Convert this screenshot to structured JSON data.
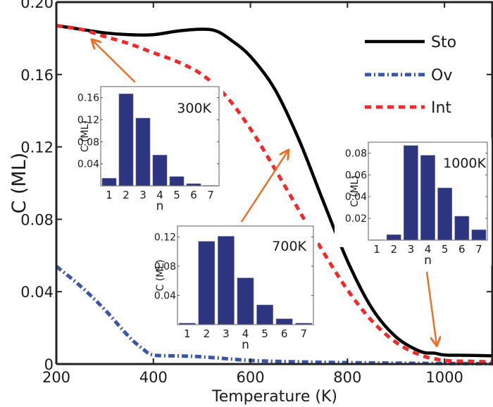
{
  "chart_data": {
    "type": "line",
    "title": "",
    "xlabel": "Temperature (K)",
    "ylabel": "C (ML)",
    "xlim": [
      200,
      1100
    ],
    "ylim": [
      0,
      0.2
    ],
    "xticks": [
      200,
      400,
      600,
      800,
      1000
    ],
    "xtick_labels": [
      "200",
      "400",
      "600",
      "800",
      "1000"
    ],
    "yticks": [
      0,
      0.04,
      0.08,
      0.12,
      0.16,
      0.2
    ],
    "ytick_labels": [
      "0",
      "0.04",
      "0.08",
      "0.12",
      "0.16",
      "0.20"
    ],
    "grid": false,
    "legend_position": "top-right",
    "series": [
      {
        "name": "Sto",
        "style": "solid",
        "color": "#000000",
        "x": [
          200,
          250,
          300,
          350,
          400,
          450,
          500,
          530,
          560,
          600,
          650,
          700,
          750,
          800,
          850,
          900,
          950,
          980,
          1000,
          1050,
          1100
        ],
        "y": [
          0.187,
          0.185,
          0.183,
          0.182,
          0.182,
          0.184,
          0.185,
          0.184,
          0.179,
          0.17,
          0.152,
          0.124,
          0.09,
          0.057,
          0.031,
          0.015,
          0.007,
          0.006,
          0.005,
          0.0048,
          0.0045
        ]
      },
      {
        "name": "Ov",
        "style": "dashdot",
        "color": "#3a55a5",
        "x": [
          200,
          250,
          300,
          350,
          380,
          400,
          450,
          500,
          600,
          700,
          800,
          900,
          1000,
          1100
        ],
        "y": [
          0.054,
          0.043,
          0.03,
          0.015,
          0.008,
          0.005,
          0.0045,
          0.004,
          0.002,
          0.0012,
          0.0008,
          0.0005,
          0.0003,
          0.0002
        ]
      },
      {
        "name": "Int",
        "style": "dashed",
        "color": "#ee2a2a",
        "x": [
          200,
          250,
          300,
          350,
          400,
          450,
          500,
          550,
          600,
          650,
          700,
          750,
          800,
          850,
          900,
          950,
          1000,
          1050,
          1100
        ],
        "y": [
          0.187,
          0.185,
          0.181,
          0.177,
          0.172,
          0.167,
          0.16,
          0.148,
          0.13,
          0.108,
          0.085,
          0.062,
          0.041,
          0.024,
          0.012,
          0.005,
          0.002,
          0.0015,
          0.0012
        ]
      }
    ],
    "annotations": [
      {
        "type": "arrow",
        "from_inset": "300K",
        "points_to_T": 260,
        "color": "#e8702a"
      },
      {
        "type": "arrow",
        "from_inset": "700K",
        "points_to_T": 690,
        "color": "#e8702a"
      },
      {
        "type": "arrow",
        "from_inset": "1000K",
        "points_to_T": 1000,
        "color": "#e8702a"
      }
    ],
    "insets": [
      {
        "type": "bar",
        "label": "300K",
        "xlabel": "n",
        "ylabel": "C (ML)",
        "categories": [
          "1",
          "2",
          "3",
          "4",
          "5",
          "6",
          "7"
        ],
        "values": [
          0.014,
          0.167,
          0.123,
          0.056,
          0.017,
          0.004,
          0.001
        ],
        "yticks": [
          0.04,
          0.08,
          0.12,
          0.16
        ],
        "ytick_labels": [
          "0.04",
          "0.08",
          "0.12",
          "0.16"
        ],
        "ylim": [
          0,
          0.18
        ],
        "color": "#2e3580"
      },
      {
        "type": "bar",
        "label": "700K",
        "xlabel": "n",
        "ylabel": "C (ML)",
        "categories": [
          "1",
          "2",
          "3",
          "4",
          "5",
          "6",
          "7"
        ],
        "values": [
          0.002,
          0.114,
          0.121,
          0.064,
          0.027,
          0.008,
          0.002
        ],
        "yticks": [
          0.04,
          0.08,
          0.12
        ],
        "ytick_labels": [
          "0.04",
          "0.08",
          "0.12"
        ],
        "ylim": [
          0,
          0.135
        ],
        "color": "#2e3580"
      },
      {
        "type": "bar",
        "label": "1000K",
        "xlabel": "n",
        "ylabel": "C (ML)",
        "categories": [
          "1",
          "2",
          "3",
          "4",
          "5",
          "6",
          "7"
        ],
        "values": [
          0.0003,
          0.005,
          0.087,
          0.078,
          0.048,
          0.022,
          0.0095
        ],
        "yticks": [
          0.02,
          0.04,
          0.06,
          0.08
        ],
        "ytick_labels": [
          "0.02",
          "0.04",
          "0.06",
          "0.08"
        ],
        "ylim": [
          0,
          0.09
        ],
        "color": "#2e3580"
      }
    ]
  }
}
